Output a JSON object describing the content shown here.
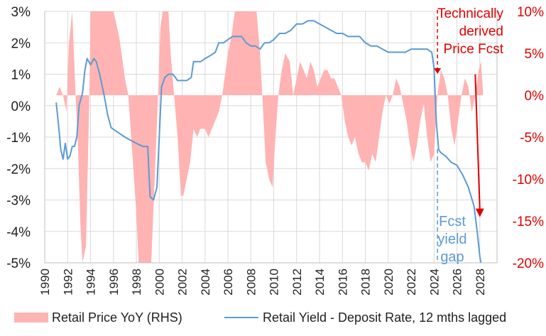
{
  "chart_data": {
    "type": "area+line",
    "title": "",
    "xlabel": "",
    "ylabel_left": "",
    "ylabel_right": "",
    "x_range": [
      1990,
      2029.5
    ],
    "x_ticks": [
      "1990",
      "1992",
      "1994",
      "1996",
      "1998",
      "2000",
      "2002",
      "2004",
      "2006",
      "2008",
      "2010",
      "2012",
      "2014",
      "2016",
      "2018",
      "2020",
      "2022",
      "2024",
      "2026",
      "2028"
    ],
    "y_left_range": [
      -5,
      3
    ],
    "y_left_ticks": [
      "3%",
      "2%",
      "1%",
      "0%",
      "-1%",
      "-2%",
      "-3%",
      "-4%",
      "-5%"
    ],
    "y_right_range": [
      -20,
      10
    ],
    "y_right_ticks": [
      "10%",
      "5%",
      "0%",
      "-5%",
      "-10%",
      "-15%",
      "-20%"
    ],
    "grid": true,
    "legend_position": "bottom",
    "series": [
      {
        "name": "Retail Price YoY (RHS)",
        "type": "area",
        "axis": "right",
        "color": "#ffb3b3",
        "points": [
          [
            1991.0,
            0
          ],
          [
            1991.3,
            1
          ],
          [
            1991.6,
            0
          ],
          [
            1991.9,
            -2
          ],
          [
            1992.1,
            6
          ],
          [
            1992.4,
            10
          ],
          [
            1992.7,
            0
          ],
          [
            1992.9,
            -6
          ],
          [
            1993.1,
            -15
          ],
          [
            1993.3,
            -20
          ],
          [
            1993.6,
            -18
          ],
          [
            1993.9,
            0
          ],
          [
            1994.0,
            10
          ],
          [
            1994.5,
            10
          ],
          [
            1995.0,
            10
          ],
          [
            1995.5,
            10
          ],
          [
            1996.0,
            10
          ],
          [
            1996.5,
            7
          ],
          [
            1997.0,
            2
          ],
          [
            1997.3,
            0
          ],
          [
            1997.6,
            -6
          ],
          [
            1998.0,
            -14
          ],
          [
            1998.2,
            -20
          ],
          [
            1998.8,
            -20
          ],
          [
            1999.3,
            -20
          ],
          [
            1999.6,
            -10
          ],
          [
            1999.9,
            0
          ],
          [
            2000.1,
            8
          ],
          [
            2000.3,
            10
          ],
          [
            2000.8,
            10
          ],
          [
            2001.0,
            5
          ],
          [
            2001.3,
            0
          ],
          [
            2001.6,
            -5
          ],
          [
            2001.9,
            -12
          ],
          [
            2002.1,
            -12
          ],
          [
            2002.4,
            -10
          ],
          [
            2002.7,
            -8
          ],
          [
            2003.0,
            -4
          ],
          [
            2003.3,
            -5
          ],
          [
            2003.6,
            -4
          ],
          [
            2004.0,
            -4
          ],
          [
            2004.3,
            -5
          ],
          [
            2004.6,
            -4
          ],
          [
            2004.9,
            -3
          ],
          [
            2005.2,
            -2
          ],
          [
            2005.5,
            0
          ],
          [
            2005.8,
            3
          ],
          [
            2006.0,
            5
          ],
          [
            2006.3,
            7
          ],
          [
            2006.6,
            10
          ],
          [
            2007.0,
            10
          ],
          [
            2007.5,
            10
          ],
          [
            2008.0,
            10
          ],
          [
            2008.5,
            10
          ],
          [
            2008.8,
            5
          ],
          [
            2009.0,
            0
          ],
          [
            2009.3,
            -8
          ],
          [
            2009.6,
            -10
          ],
          [
            2009.9,
            -11
          ],
          [
            2010.1,
            -6
          ],
          [
            2010.4,
            0
          ],
          [
            2010.7,
            3
          ],
          [
            2011.0,
            5
          ],
          [
            2011.4,
            4
          ],
          [
            2011.7,
            0
          ],
          [
            2012.0,
            2
          ],
          [
            2012.3,
            4
          ],
          [
            2012.6,
            3
          ],
          [
            2012.9,
            2
          ],
          [
            2013.2,
            4
          ],
          [
            2013.5,
            3
          ],
          [
            2013.8,
            1
          ],
          [
            2014.1,
            2
          ],
          [
            2014.4,
            3
          ],
          [
            2014.7,
            3
          ],
          [
            2015.0,
            2
          ],
          [
            2015.3,
            2
          ],
          [
            2015.6,
            1
          ],
          [
            2015.9,
            0
          ],
          [
            2016.2,
            -3
          ],
          [
            2016.5,
            -5
          ],
          [
            2016.8,
            -6
          ],
          [
            2017.1,
            -5
          ],
          [
            2017.4,
            -7
          ],
          [
            2017.7,
            -8
          ],
          [
            2018.0,
            -8
          ],
          [
            2018.3,
            -9
          ],
          [
            2018.6,
            -7
          ],
          [
            2018.9,
            -8
          ],
          [
            2019.2,
            -5
          ],
          [
            2019.5,
            -2
          ],
          [
            2019.8,
            0
          ],
          [
            2020.1,
            -1
          ],
          [
            2020.4,
            0
          ],
          [
            2020.7,
            2
          ],
          [
            2021.0,
            1
          ],
          [
            2021.3,
            -1
          ],
          [
            2021.6,
            -3
          ],
          [
            2021.9,
            -6
          ],
          [
            2022.2,
            -8
          ],
          [
            2022.5,
            -6
          ],
          [
            2022.8,
            -3
          ],
          [
            2023.1,
            -1
          ],
          [
            2023.4,
            -5
          ],
          [
            2023.7,
            -8
          ],
          [
            2024.0,
            -7
          ],
          [
            2024.3,
            0
          ],
          [
            2024.6,
            3
          ],
          [
            2024.9,
            2
          ],
          [
            2025.2,
            0
          ],
          [
            2025.5,
            -4
          ],
          [
            2025.8,
            -6
          ],
          [
            2026.1,
            -3
          ],
          [
            2026.4,
            0
          ],
          [
            2026.7,
            2
          ],
          [
            2027.0,
            1
          ],
          [
            2027.3,
            -2
          ],
          [
            2027.6,
            0
          ],
          [
            2027.9,
            3
          ],
          [
            2028.1,
            4
          ],
          [
            2028.3,
            0
          ]
        ]
      },
      {
        "name": "Retail Yield - Deposit Rate, 12 mths lagged",
        "type": "line",
        "axis": "left",
        "color": "#5b9bd5",
        "points": [
          [
            1991.0,
            0.1
          ],
          [
            1991.2,
            -0.6
          ],
          [
            1991.4,
            -1.4
          ],
          [
            1991.6,
            -1.7
          ],
          [
            1991.8,
            -1.2
          ],
          [
            1992.0,
            -1.7
          ],
          [
            1992.2,
            -1.6
          ],
          [
            1992.4,
            -1.3
          ],
          [
            1992.6,
            -1.3
          ],
          [
            1992.8,
            -1.0
          ],
          [
            1993.0,
            0.0
          ],
          [
            1993.3,
            0.4
          ],
          [
            1993.5,
            1.1
          ],
          [
            1993.7,
            1.5
          ],
          [
            1994.0,
            1.3
          ],
          [
            1994.3,
            1.5
          ],
          [
            1994.5,
            1.4
          ],
          [
            1994.8,
            1.0
          ],
          [
            1995.2,
            0.3
          ],
          [
            1995.5,
            -0.3
          ],
          [
            1995.8,
            -0.7
          ],
          [
            1996.2,
            -0.8
          ],
          [
            1996.6,
            -0.9
          ],
          [
            1997.0,
            -1.0
          ],
          [
            1997.5,
            -1.1
          ],
          [
            1998.0,
            -1.2
          ],
          [
            1998.6,
            -1.3
          ],
          [
            1999.0,
            -1.3
          ],
          [
            1999.2,
            -2.9
          ],
          [
            1999.5,
            -3.0
          ],
          [
            1999.8,
            -2.6
          ],
          [
            2000.0,
            -1.0
          ],
          [
            2000.2,
            0.6
          ],
          [
            2000.5,
            0.9
          ],
          [
            2000.8,
            1.0
          ],
          [
            2001.2,
            1.0
          ],
          [
            2001.6,
            0.8
          ],
          [
            2002.0,
            0.8
          ],
          [
            2002.4,
            0.8
          ],
          [
            2002.8,
            0.9
          ],
          [
            2003.0,
            1.4
          ],
          [
            2003.3,
            1.4
          ],
          [
            2003.6,
            1.4
          ],
          [
            2004.0,
            1.5
          ],
          [
            2004.5,
            1.6
          ],
          [
            2004.9,
            1.7
          ],
          [
            2005.2,
            2.0
          ],
          [
            2005.6,
            2.0
          ],
          [
            2006.0,
            2.1
          ],
          [
            2006.4,
            2.2
          ],
          [
            2006.8,
            2.2
          ],
          [
            2007.2,
            2.2
          ],
          [
            2007.6,
            2.0
          ],
          [
            2008.0,
            1.9
          ],
          [
            2008.4,
            1.9
          ],
          [
            2008.8,
            1.8
          ],
          [
            2009.2,
            2.0
          ],
          [
            2009.6,
            2.0
          ],
          [
            2010.0,
            2.1
          ],
          [
            2010.5,
            2.3
          ],
          [
            2011.0,
            2.3
          ],
          [
            2011.5,
            2.4
          ],
          [
            2012.0,
            2.6
          ],
          [
            2012.5,
            2.6
          ],
          [
            2013.0,
            2.7
          ],
          [
            2013.5,
            2.7
          ],
          [
            2014.0,
            2.6
          ],
          [
            2014.5,
            2.5
          ],
          [
            2015.0,
            2.4
          ],
          [
            2015.5,
            2.3
          ],
          [
            2016.0,
            2.3
          ],
          [
            2016.5,
            2.2
          ],
          [
            2017.0,
            2.2
          ],
          [
            2017.5,
            2.2
          ],
          [
            2018.0,
            2.0
          ],
          [
            2018.5,
            1.9
          ],
          [
            2019.0,
            1.9
          ],
          [
            2019.5,
            1.8
          ],
          [
            2020.0,
            1.7
          ],
          [
            2020.5,
            1.7
          ],
          [
            2021.0,
            1.7
          ],
          [
            2021.5,
            1.7
          ],
          [
            2022.0,
            1.8
          ],
          [
            2022.5,
            1.8
          ],
          [
            2023.0,
            1.8
          ],
          [
            2023.4,
            1.8
          ],
          [
            2023.8,
            1.7
          ],
          [
            2024.0,
            1.2
          ],
          [
            2024.2,
            -0.5
          ],
          [
            2024.4,
            -1.4
          ],
          [
            2024.6,
            -1.5
          ],
          [
            2025.0,
            -1.6
          ],
          [
            2025.5,
            -1.8
          ],
          [
            2026.0,
            -1.9
          ],
          [
            2026.5,
            -2.2
          ],
          [
            2027.0,
            -2.6
          ],
          [
            2027.5,
            -3.2
          ],
          [
            2027.8,
            -4.1
          ],
          [
            2028.0,
            -4.8
          ],
          [
            2028.1,
            -5.0
          ]
        ]
      }
    ],
    "annotations": {
      "fcst_start_year": 2024.3,
      "forecast_label_lines": [
        "Technically",
        "derived",
        "Price Fcst"
      ],
      "yield_gap_label_lines": [
        "Fcst",
        "yield",
        "gap"
      ],
      "arrow_from": [
        2027.6,
        1.0
      ],
      "arrow_to": [
        2028.0,
        -3.5
      ]
    },
    "colors": {
      "area": "#ffb3b3",
      "line": "#5b9bd5",
      "right_axis_text": "#e00000",
      "grid": "#d9d9d9"
    }
  }
}
